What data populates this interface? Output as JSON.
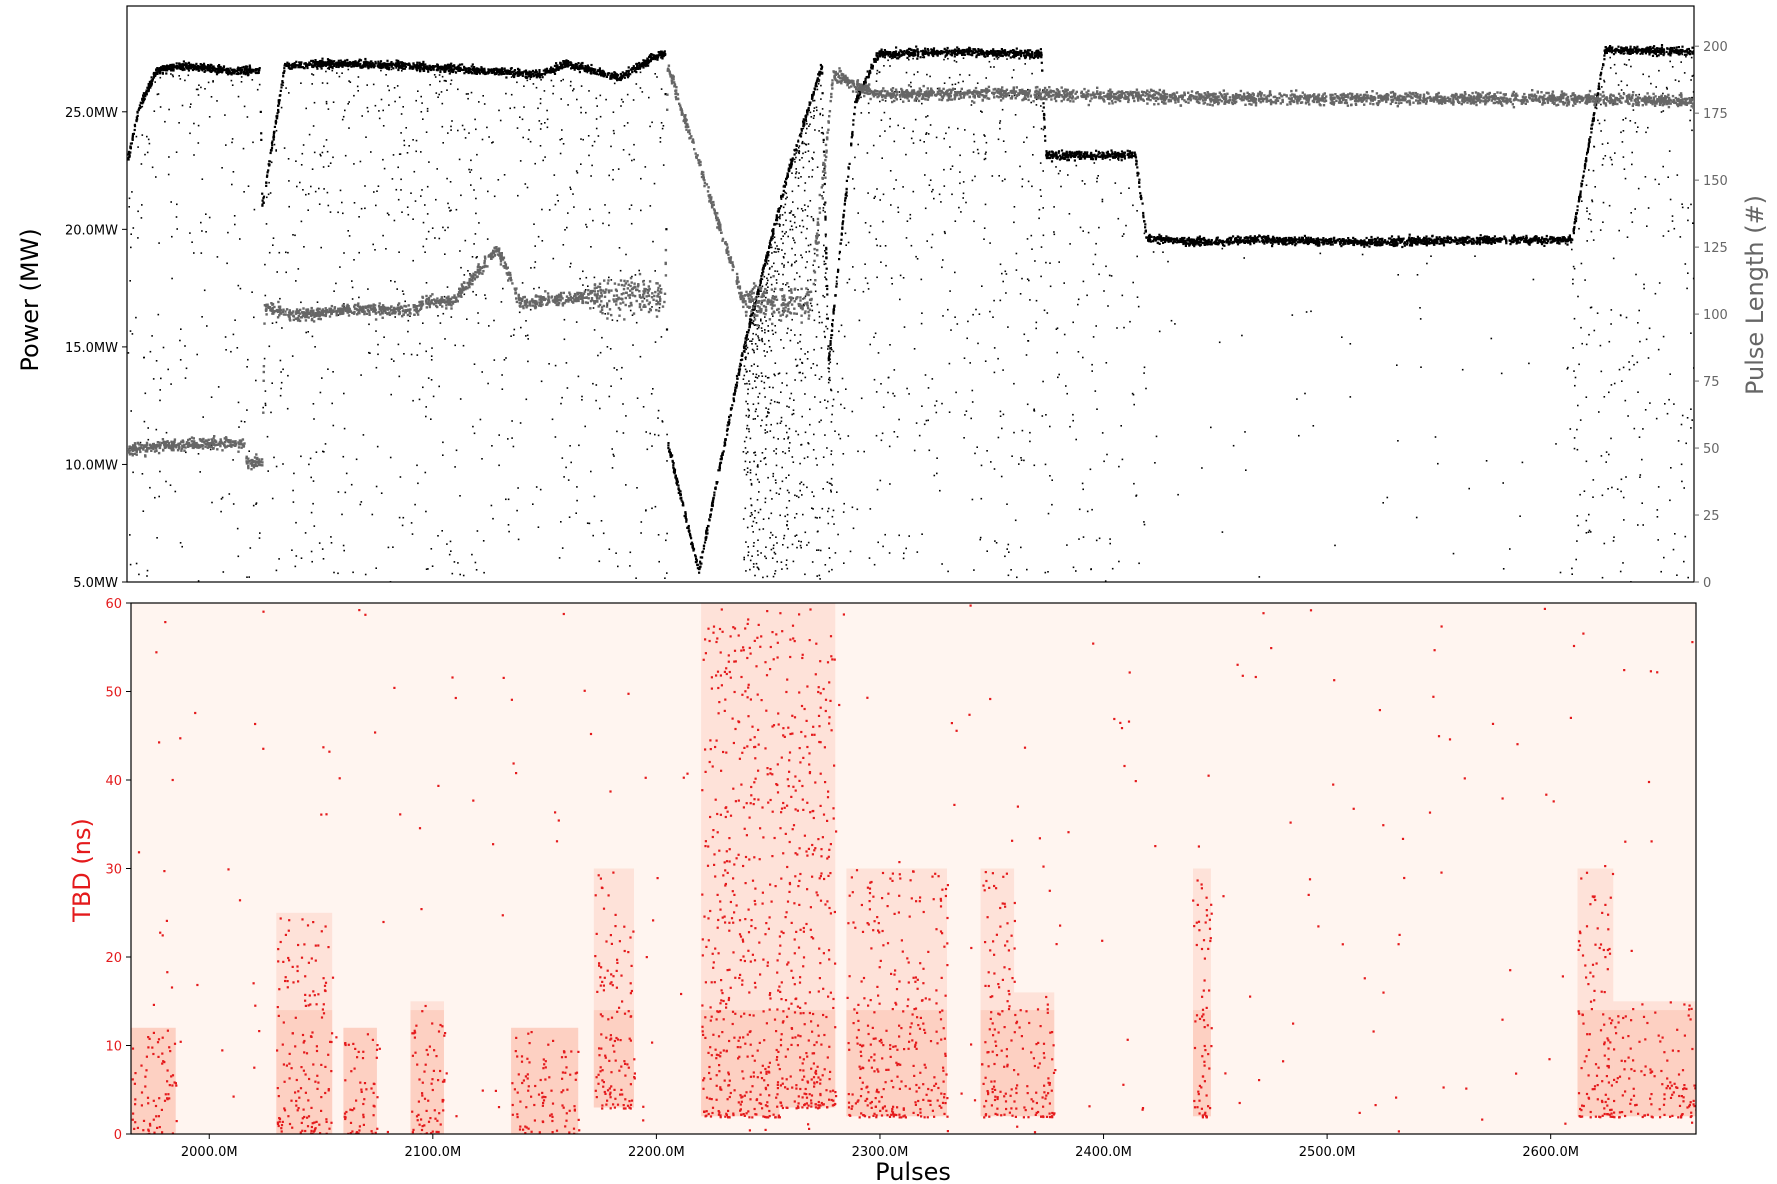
{
  "chart_data": [
    {
      "type": "scatter",
      "panel": "top",
      "xlabel": "",
      "ylabel": "Power (MW)",
      "y2label": "Pulse Length (#)",
      "xlim": [
        1965,
        2665
      ],
      "ylim": [
        5,
        29.5
      ],
      "y2lim": [
        0,
        215
      ],
      "yticks": [
        "5.0MW",
        "10.0MW",
        "15.0MW",
        "20.0MW",
        "25.0MW"
      ],
      "yticks_values": [
        5,
        10,
        15,
        20,
        25
      ],
      "y2ticks": [
        "0",
        "25",
        "50",
        "75",
        "100",
        "125",
        "150",
        "175",
        "200"
      ],
      "y2ticks_values": [
        0,
        25,
        50,
        75,
        100,
        125,
        150,
        175,
        200
      ],
      "colors": {
        "power": "#000000",
        "pulse_length": "#666666",
        "right_axis": "#666666"
      },
      "series": [
        {
          "name": "Power (MW)",
          "axis": "left",
          "points": [
            [
              1965,
              23.0
            ],
            [
              1970,
              25.3
            ],
            [
              1978,
              26.8
            ],
            [
              1990,
              27.0
            ],
            [
              2010,
              26.8
            ],
            [
              2024,
              26.8
            ],
            [
              2025,
              21.0
            ],
            [
              2030,
              24.0
            ],
            [
              2035,
              27.0
            ],
            [
              2060,
              27.1
            ],
            [
              2090,
              27.0
            ],
            [
              2125,
              26.8
            ],
            [
              2150,
              26.6
            ],
            [
              2160,
              27.1
            ],
            [
              2185,
              26.5
            ],
            [
              2200,
              27.4
            ],
            [
              2205,
              27.5
            ],
            [
              2206,
              11.0
            ],
            [
              2220,
              5.5
            ],
            [
              2240,
              15.0
            ],
            [
              2260,
              22.5
            ],
            [
              2275,
              27.0
            ],
            [
              2278,
              14.5
            ],
            [
              2290,
              25.5
            ],
            [
              2300,
              27.5
            ],
            [
              2335,
              27.6
            ],
            [
              2373,
              27.5
            ],
            [
              2375,
              23.2
            ],
            [
              2400,
              23.2
            ],
            [
              2415,
              23.2
            ],
            [
              2420,
              19.7
            ],
            [
              2445,
              19.5
            ],
            [
              2470,
              19.6
            ],
            [
              2520,
              19.5
            ],
            [
              2580,
              19.6
            ],
            [
              2610,
              19.6
            ],
            [
              2625,
              27.7
            ],
            [
              2665,
              27.6
            ]
          ]
        },
        {
          "name": "Pulse Length (#)",
          "axis": "right",
          "points": [
            [
              1965,
              50
            ],
            [
              1990,
              52
            ],
            [
              2017,
              52
            ],
            [
              2018,
              45
            ],
            [
              2025,
              45
            ],
            [
              2026,
              103
            ],
            [
              2040,
              100
            ],
            [
              2060,
              102
            ],
            [
              2094,
              102
            ],
            [
              2096,
              105
            ],
            [
              2110,
              105
            ],
            [
              2130,
              125
            ],
            [
              2140,
              105
            ],
            [
              2170,
              107
            ],
            [
              2175,
              107
            ],
            [
              2180,
              107
            ],
            [
              2205,
              107
            ],
            [
              2206,
              193
            ],
            [
              2240,
              105
            ],
            [
              2270,
              105
            ],
            [
              2280,
              190
            ],
            [
              2300,
              182
            ],
            [
              2350,
              183
            ],
            [
              2400,
              182
            ],
            [
              2450,
              181
            ],
            [
              2500,
              181
            ],
            [
              2550,
              181
            ],
            [
              2600,
              181
            ],
            [
              2665,
              180
            ]
          ]
        }
      ]
    },
    {
      "type": "scatter",
      "panel": "bottom",
      "xlabel": "Pulses",
      "ylabel": "TBD (ns)",
      "xlim": [
        1965,
        2665
      ],
      "ylim": [
        0,
        60
      ],
      "xticks": [
        "2000.0M",
        "2100.0M",
        "2200.0M",
        "2300.0M",
        "2400.0M",
        "2500.0M",
        "2600.0M"
      ],
      "xticks_values": [
        2000,
        2100,
        2200,
        2300,
        2400,
        2500,
        2600
      ],
      "yticks": [
        "0",
        "10",
        "20",
        "30",
        "40",
        "50",
        "60"
      ],
      "yticks_values": [
        0,
        10,
        20,
        30,
        40,
        50,
        60
      ],
      "colors": {
        "points": "#e41a1c",
        "density_low": "#fff5f0",
        "density_high": "#fc9272",
        "ylabel": "#e41a1c"
      },
      "series": [
        {
          "name": "TBD (ns)",
          "clusters": [
            {
              "x": [
                1965,
                1985
              ],
              "y": [
                0,
                12
              ]
            },
            {
              "x": [
                2030,
                2055
              ],
              "y": [
                0,
                25
              ]
            },
            {
              "x": [
                2060,
                2075
              ],
              "y": [
                0,
                12
              ]
            },
            {
              "x": [
                2090,
                2105
              ],
              "y": [
                0,
                15
              ]
            },
            {
              "x": [
                2135,
                2165
              ],
              "y": [
                0,
                12
              ]
            },
            {
              "x": [
                2172,
                2190
              ],
              "y": [
                3,
                30
              ]
            },
            {
              "x": [
                2220,
                2255
              ],
              "y": [
                2,
                60
              ]
            },
            {
              "x": [
                2255,
                2280
              ],
              "y": [
                3,
                60
              ]
            },
            {
              "x": [
                2285,
                2305
              ],
              "y": [
                2,
                30
              ]
            },
            {
              "x": [
                2305,
                2330
              ],
              "y": [
                2,
                30
              ]
            },
            {
              "x": [
                2345,
                2360
              ],
              "y": [
                2,
                30
              ]
            },
            {
              "x": [
                2360,
                2378
              ],
              "y": [
                2,
                16
              ]
            },
            {
              "x": [
                2440,
                2448
              ],
              "y": [
                2,
                30
              ]
            },
            {
              "x": [
                2612,
                2628
              ],
              "y": [
                2,
                30
              ]
            },
            {
              "x": [
                2628,
                2665
              ],
              "y": [
                2,
                15
              ]
            }
          ]
        }
      ]
    }
  ]
}
